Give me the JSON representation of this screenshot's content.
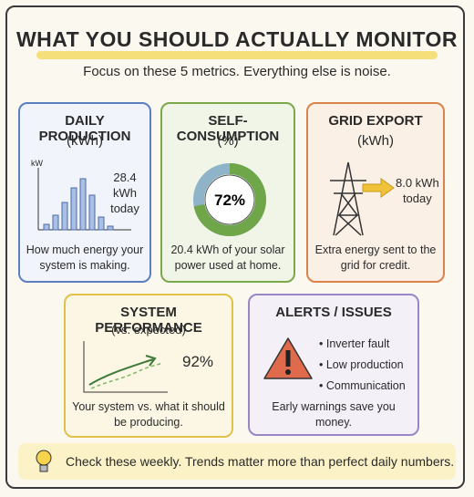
{
  "header": {
    "title": "WHAT YOU SHOULD ACTUALLY MONITOR",
    "subtitle": "Focus on these 5 metrics. Everything else is noise."
  },
  "cards": [
    {
      "title": "DAILY PRODUCTION",
      "unit": "(kWh)",
      "axis_label": "kW",
      "reading": "28.4 kWh",
      "reading_note": "today",
      "description": "How much energy your system is making."
    },
    {
      "title": "SELF-CONSUMPTION",
      "unit": "(%)",
      "gauge": {
        "value": 72,
        "label": "72%"
      },
      "description": "20.4 kWh of your solar power used at home."
    },
    {
      "title": "GRID EXPORT",
      "unit": "(kWh)",
      "reading": "8.0 kWh",
      "reading_note": "today",
      "description": "Extra energy sent to the grid for credit."
    },
    {
      "title": "SYSTEM PERFORMANCE",
      "unit": "(vs. expected)",
      "reading": "92%",
      "description": "Your system vs. what it should be producing."
    },
    {
      "title": "ALERTS / ISSUES",
      "items": [
        "Inverter fault",
        "Low production",
        "Communication"
      ],
      "description": "Early warnings save you money."
    }
  ],
  "footer": "Check these weekly. Trends matter more than perfect daily numbers."
}
